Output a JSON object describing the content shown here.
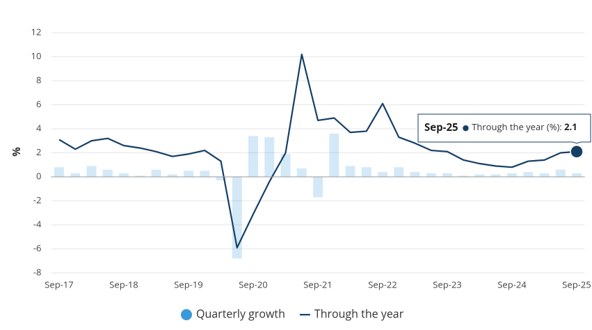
{
  "chart_data": {
    "type": "bar-line",
    "y_label": "%",
    "categories": [
      "Sep-17",
      null,
      null,
      null,
      "Sep-18",
      null,
      null,
      null,
      "Sep-19",
      null,
      null,
      null,
      "Sep-20",
      null,
      null,
      null,
      "Sep-21",
      null,
      null,
      null,
      "Sep-22",
      null,
      null,
      null,
      "Sep-23",
      null,
      null,
      null,
      "Sep-24",
      null,
      null,
      null,
      "Sep-25"
    ],
    "series": [
      {
        "name": "Quarterly growth",
        "type": "bar",
        "color": "#3a9ad9",
        "values": [
          0.8,
          0.3,
          0.9,
          0.6,
          0.3,
          0.1,
          0.6,
          0.2,
          0.5,
          0.5,
          -0.3,
          -6.8,
          3.4,
          3.3,
          1.9,
          0.7,
          -1.7,
          3.6,
          0.9,
          0.8,
          0.4,
          0.8,
          0.4,
          0.3,
          0.3,
          0.1,
          0.2,
          0.2,
          0.3,
          0.4,
          0.3,
          0.6,
          0.3
        ]
      },
      {
        "name": "Through the year",
        "type": "line",
        "color": "#163f66",
        "values": [
          3.1,
          2.3,
          3.0,
          3.2,
          2.6,
          2.4,
          2.1,
          1.7,
          1.9,
          2.2,
          1.3,
          -5.9,
          -3.1,
          -0.4,
          2.0,
          10.2,
          4.7,
          4.9,
          3.7,
          3.8,
          6.1,
          3.3,
          2.8,
          2.2,
          2.1,
          1.4,
          1.1,
          0.9,
          0.8,
          1.3,
          1.4,
          2.0,
          2.1
        ]
      }
    ],
    "ylim": [
      -8,
      12
    ],
    "yticks": [
      -8,
      -6,
      -4,
      -2,
      0,
      2,
      4,
      6,
      8,
      10,
      12
    ],
    "grid": true,
    "legend": "bottom",
    "tooltip": {
      "label": "Through the year (%): "
    }
  }
}
